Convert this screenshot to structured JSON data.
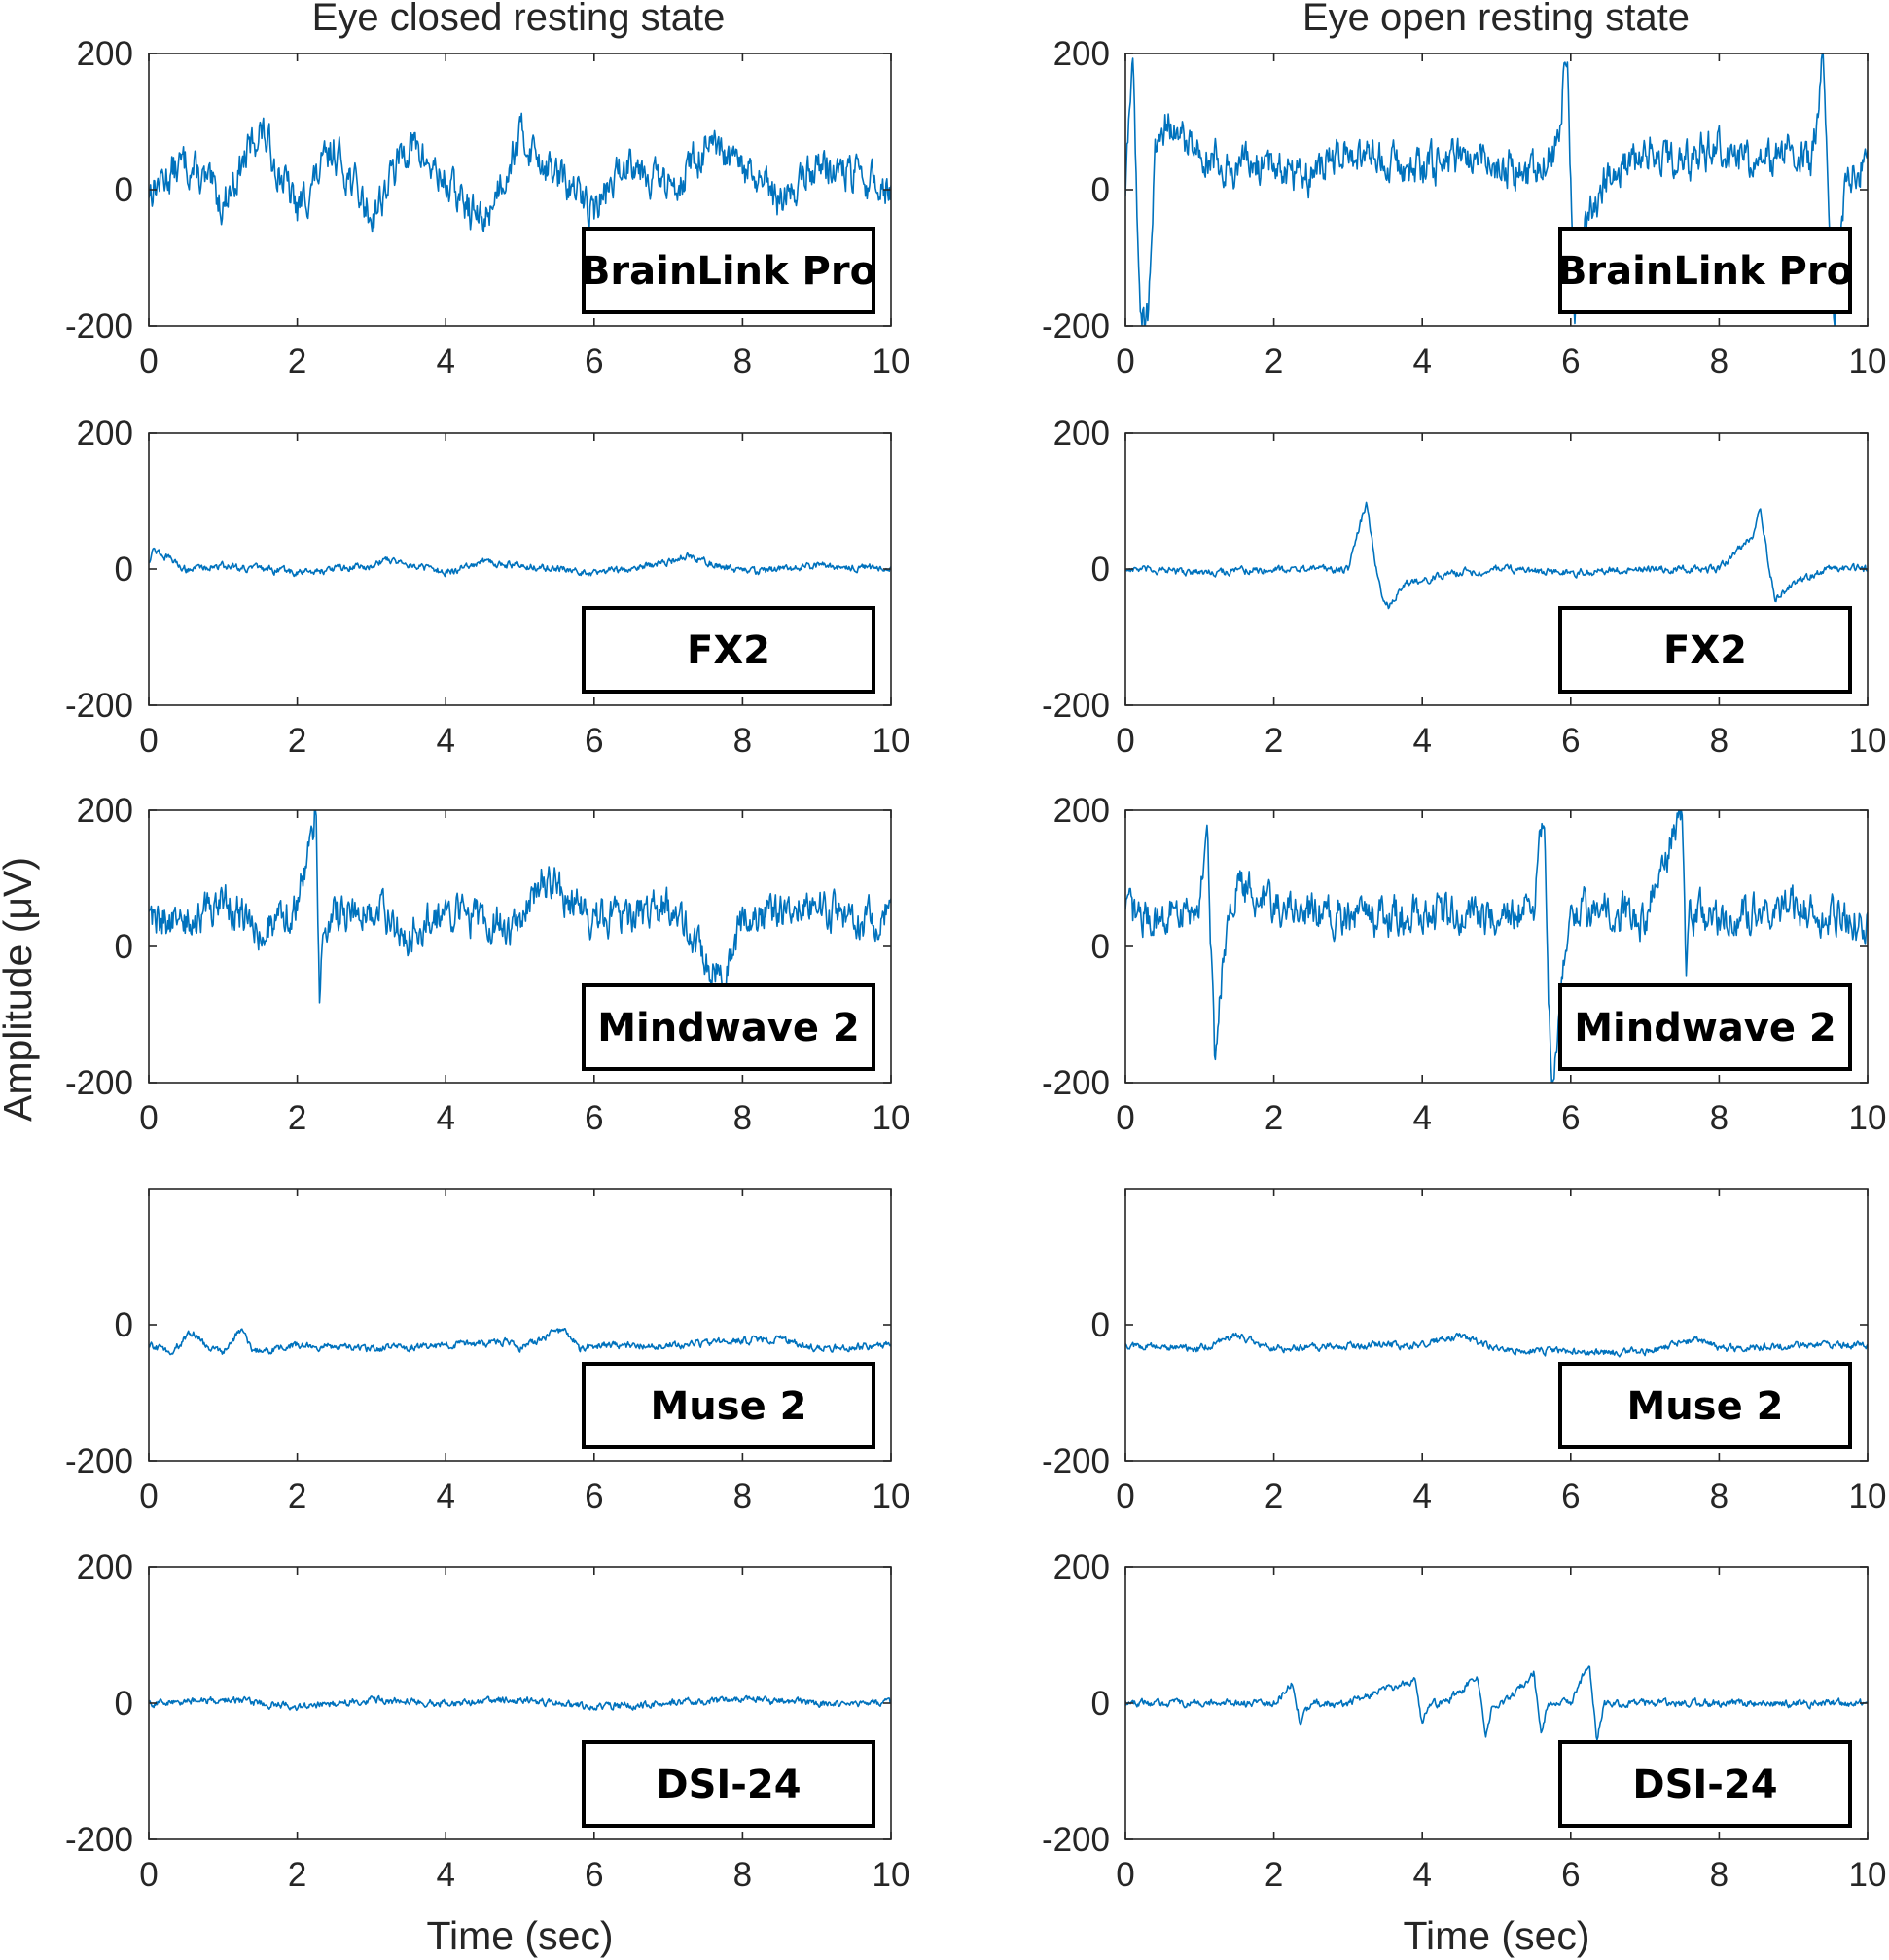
{
  "chart_data": [
    {
      "type": "line",
      "column": 0,
      "row": 0,
      "title": "Eye closed resting state",
      "device": "BrainLink Pro",
      "xlim": [
        0,
        10
      ],
      "ylim": [
        -200,
        200
      ],
      "x_ticks": [
        0,
        2,
        4,
        6,
        8,
        10
      ],
      "y_ticks": [
        200,
        0,
        -200
      ],
      "x": [
        0,
        0.5,
        1,
        1.5,
        2,
        2.5,
        3,
        3.5,
        4,
        4.5,
        5,
        5.5,
        6,
        6.5,
        7,
        7.5,
        8,
        8.5,
        9,
        9.5,
        10
      ],
      "y": [
        0,
        40,
        -20,
        90,
        -30,
        60,
        -40,
        70,
        10,
        -50,
        80,
        20,
        -30,
        50,
        0,
        60,
        30,
        -20,
        40,
        20,
        0
      ],
      "style": "noisy"
    },
    {
      "type": "line",
      "column": 1,
      "row": 0,
      "title": "Eye open resting state",
      "device": "BrainLink Pro",
      "xlim": [
        0,
        10
      ],
      "ylim": [
        -200,
        200
      ],
      "x_ticks": [
        0,
        2,
        4,
        6,
        8,
        10
      ],
      "y_ticks": [
        200,
        0,
        -200
      ],
      "x": [
        0,
        0.1,
        0.2,
        0.3,
        0.4,
        0.5,
        1,
        1.5,
        2,
        2.5,
        3,
        3.5,
        4,
        4.5,
        5,
        5.5,
        5.8,
        5.95,
        6.05,
        6.2,
        6.5,
        7,
        7.5,
        8,
        8.5,
        9,
        9.25,
        9.4,
        9.55,
        9.7,
        10
      ],
      "y": [
        0,
        200,
        -200,
        -180,
        40,
        100,
        60,
        30,
        40,
        20,
        60,
        40,
        30,
        50,
        40,
        20,
        60,
        200,
        -200,
        -50,
        20,
        60,
        40,
        70,
        30,
        60,
        40,
        200,
        -200,
        20,
        40
      ],
      "style": "noisy"
    },
    {
      "type": "line",
      "column": 0,
      "row": 1,
      "title": "",
      "device": "FX2",
      "xlim": [
        0,
        10
      ],
      "ylim": [
        -200,
        200
      ],
      "x_ticks": [
        0,
        2,
        4,
        6,
        8,
        10
      ],
      "y_ticks": [
        200,
        0,
        -200
      ],
      "x": [
        0,
        0.05,
        0.5,
        1,
        2,
        3,
        3.2,
        4,
        4.5,
        5,
        6,
        7,
        7.2,
        8,
        9,
        10
      ],
      "y": [
        10,
        30,
        0,
        5,
        -5,
        5,
        15,
        -5,
        10,
        5,
        -5,
        10,
        20,
        -5,
        5,
        0
      ],
      "style": "noisy-small"
    },
    {
      "type": "line",
      "column": 1,
      "row": 1,
      "title": "",
      "device": "FX2",
      "xlim": [
        0,
        10
      ],
      "ylim": [
        -200,
        200
      ],
      "x_ticks": [
        0,
        2,
        4,
        6,
        8,
        10
      ],
      "y_ticks": [
        200,
        0,
        -200
      ],
      "x": [
        0,
        1,
        2,
        3,
        3.15,
        3.25,
        3.35,
        3.45,
        3.55,
        3.8,
        4.5,
        5,
        6,
        7,
        8,
        8.45,
        8.55,
        8.65,
        8.75,
        9,
        9.5,
        10
      ],
      "y": [
        0,
        -5,
        0,
        0,
        60,
        100,
        20,
        -40,
        -55,
        -20,
        -5,
        0,
        -5,
        0,
        0,
        50,
        95,
        20,
        -45,
        -20,
        0,
        0
      ],
      "style": "noisy-small"
    },
    {
      "type": "line",
      "column": 0,
      "row": 2,
      "title": "",
      "device": "Mindwave 2",
      "xlim": [
        0,
        10
      ],
      "ylim": [
        -200,
        200
      ],
      "x_ticks": [
        0,
        2,
        4,
        6,
        8,
        10
      ],
      "y_ticks": [
        200,
        0,
        -200
      ],
      "x": [
        0,
        0.5,
        1,
        1.5,
        2,
        2.25,
        2.3,
        2.35,
        3,
        3.5,
        4,
        5,
        5.3,
        6,
        7,
        7.7,
        8,
        9,
        9.5,
        10
      ],
      "y": [
        50,
        30,
        70,
        20,
        60,
        200,
        -80,
        40,
        60,
        20,
        50,
        30,
        100,
        40,
        60,
        -50,
        40,
        60,
        30,
        50
      ],
      "style": "noisy"
    },
    {
      "type": "line",
      "column": 1,
      "row": 2,
      "title": "",
      "device": "Mindwave 2",
      "xlim": [
        0,
        10
      ],
      "ylim": [
        -200,
        200
      ],
      "x_ticks": [
        0,
        2,
        4,
        6,
        8,
        10
      ],
      "y_ticks": [
        200,
        0,
        -200
      ],
      "x": [
        0,
        0.5,
        1,
        1.1,
        1.2,
        1.3,
        1.5,
        2,
        3,
        4,
        5,
        5.5,
        5.65,
        5.7,
        5.75,
        5.85,
        6,
        7,
        7.5,
        7.55,
        7.6,
        8,
        9,
        10
      ],
      "y": [
        50,
        40,
        60,
        200,
        -170,
        -40,
        90,
        60,
        40,
        50,
        40,
        60,
        200,
        -60,
        -180,
        -100,
        60,
        40,
        200,
        -40,
        50,
        40,
        60,
        30
      ],
      "style": "noisy"
    },
    {
      "type": "line",
      "column": 0,
      "row": 3,
      "title": "",
      "device": "Muse 2",
      "xlim": [
        0,
        10
      ],
      "ylim": [
        -200,
        200
      ],
      "x_ticks": [
        0,
        2,
        4,
        6,
        8,
        10
      ],
      "y_ticks": [
        0,
        -200
      ],
      "x": [
        0,
        0.3,
        0.6,
        0.8,
        1,
        1.25,
        1.4,
        2,
        3,
        4,
        4.8,
        5,
        5.6,
        5.8,
        6,
        7,
        8.5,
        9,
        10
      ],
      "y": [
        -30,
        -40,
        -10,
        -35,
        -40,
        -5,
        -40,
        -30,
        -35,
        -30,
        -25,
        -35,
        -5,
        -35,
        -30,
        -30,
        -20,
        -35,
        -30
      ],
      "style": "noisy-small"
    },
    {
      "type": "line",
      "column": 1,
      "row": 3,
      "title": "",
      "device": "Muse 2",
      "xlim": [
        0,
        10
      ],
      "ylim": [
        -200,
        200
      ],
      "x_ticks": [
        0,
        2,
        4,
        6,
        8,
        10
      ],
      "y_ticks": [
        0,
        -200
      ],
      "x": [
        0,
        1,
        1.5,
        2,
        3,
        4,
        4.5,
        5,
        6,
        7,
        7.7,
        8,
        9,
        10
      ],
      "y": [
        -30,
        -35,
        -15,
        -35,
        -30,
        -30,
        -15,
        -35,
        -40,
        -40,
        -20,
        -35,
        -30,
        -30
      ],
      "style": "noisy-small"
    },
    {
      "type": "line",
      "column": 0,
      "row": 4,
      "title": "",
      "device": "DSI-24",
      "xlim": [
        0,
        10
      ],
      "ylim": [
        -200,
        200
      ],
      "x_ticks": [
        0,
        2,
        4,
        6,
        8,
        10
      ],
      "y_ticks": [
        200,
        0,
        -200
      ],
      "xlabel": "Time (sec)",
      "x": [
        0,
        1,
        2,
        3,
        4,
        5,
        6,
        7,
        8,
        9,
        10
      ],
      "y": [
        0,
        5,
        -5,
        5,
        0,
        5,
        -5,
        0,
        5,
        0,
        0
      ],
      "style": "noisy-small"
    },
    {
      "type": "line",
      "column": 1,
      "row": 4,
      "title": "",
      "device": "DSI-24",
      "xlim": [
        0,
        10
      ],
      "ylim": [
        -200,
        200
      ],
      "x_ticks": [
        0,
        2,
        4,
        6,
        8,
        10
      ],
      "y_ticks": [
        200,
        0,
        -200
      ],
      "xlabel": "Time (sec)",
      "x": [
        0,
        1,
        2,
        2.25,
        2.35,
        2.5,
        3,
        3.9,
        4,
        4.1,
        4.3,
        4.75,
        4.85,
        4.95,
        5.1,
        5.5,
        5.6,
        5.7,
        5.8,
        6,
        6.25,
        6.35,
        6.45,
        6.6,
        7,
        8,
        9,
        10
      ],
      "y": [
        0,
        0,
        0,
        30,
        -25,
        0,
        0,
        35,
        -30,
        0,
        0,
        40,
        -50,
        0,
        0,
        45,
        -45,
        0,
        0,
        0,
        60,
        -55,
        0,
        0,
        0,
        0,
        0,
        0
      ],
      "style": "noisy-small"
    }
  ],
  "shared_ylabel": "Amplitude (μV)",
  "colors": {
    "trace": "#0072bd",
    "axis": "#262626",
    "label_border": "#000000"
  }
}
